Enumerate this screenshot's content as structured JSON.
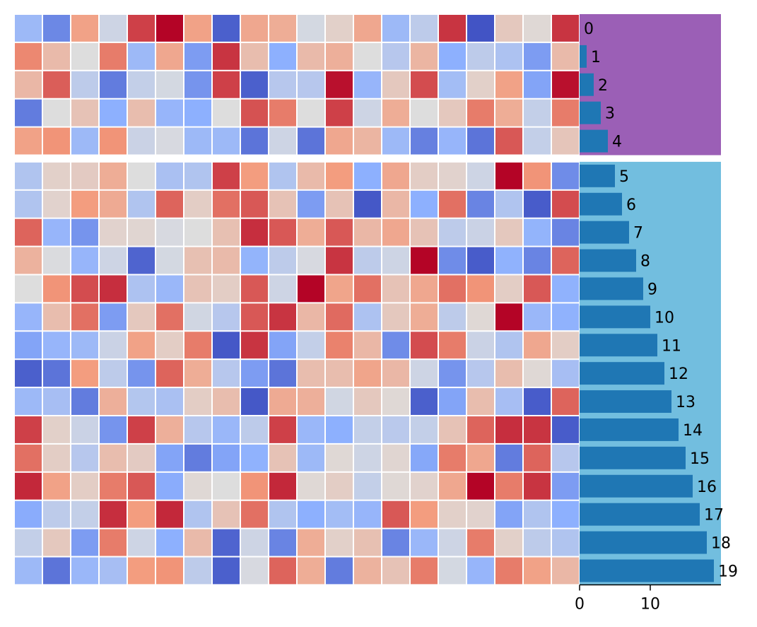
{
  "chart_data": [
    {
      "type": "heatmap",
      "rows": 20,
      "cols": 20,
      "color_scale": "coolwarm",
      "color_range": [
        0,
        1
      ],
      "row_groups": [
        [
          0,
          4
        ],
        [
          5,
          19
        ]
      ],
      "values": [
        [
          0.3,
          0.15,
          0.72,
          0.45,
          0.9,
          1.0,
          0.72,
          0.05,
          0.7,
          0.68,
          0.47,
          0.55,
          0.7,
          0.3,
          0.4,
          0.92,
          0.02,
          0.58,
          0.52,
          0.92
        ],
        [
          0.78,
          0.63,
          0.5,
          0.8,
          0.3,
          0.7,
          0.2,
          0.92,
          0.62,
          0.25,
          0.63,
          0.67,
          0.5,
          0.38,
          0.65,
          0.25,
          0.4,
          0.35,
          0.2,
          0.63
        ],
        [
          0.64,
          0.85,
          0.4,
          0.12,
          0.42,
          0.47,
          0.18,
          0.9,
          0.05,
          0.38,
          0.38,
          0.98,
          0.28,
          0.58,
          0.88,
          0.32,
          0.55,
          0.72,
          0.22,
          0.98
        ],
        [
          0.12,
          0.5,
          0.6,
          0.25,
          0.62,
          0.28,
          0.25,
          0.5,
          0.87,
          0.8,
          0.5,
          0.9,
          0.45,
          0.68,
          0.5,
          0.58,
          0.8,
          0.68,
          0.42,
          0.8
        ],
        [
          0.72,
          0.76,
          0.3,
          0.76,
          0.44,
          0.48,
          0.3,
          0.3,
          0.1,
          0.45,
          0.1,
          0.7,
          0.65,
          0.3,
          0.13,
          0.28,
          0.1,
          0.86,
          0.42,
          0.59
        ],
        [
          0.36,
          0.55,
          0.57,
          0.68,
          0.5,
          0.34,
          0.36,
          0.9,
          0.74,
          0.36,
          0.63,
          0.74,
          0.25,
          0.7,
          0.56,
          0.54,
          0.45,
          1.0,
          0.76,
          0.16
        ],
        [
          0.36,
          0.54,
          0.74,
          0.69,
          0.36,
          0.84,
          0.56,
          0.82,
          0.86,
          0.6,
          0.2,
          0.6,
          0.03,
          0.64,
          0.25,
          0.82,
          0.14,
          0.36,
          0.04,
          0.88
        ],
        [
          0.84,
          0.28,
          0.18,
          0.54,
          0.53,
          0.48,
          0.5,
          0.61,
          0.93,
          0.86,
          0.68,
          0.86,
          0.64,
          0.7,
          0.6,
          0.4,
          0.44,
          0.58,
          0.27,
          0.14
        ],
        [
          0.66,
          0.49,
          0.28,
          0.45,
          0.06,
          0.47,
          0.61,
          0.63,
          0.27,
          0.4,
          0.48,
          0.92,
          0.4,
          0.45,
          1.0,
          0.16,
          0.04,
          0.26,
          0.14,
          0.84
        ],
        [
          0.5,
          0.76,
          0.88,
          0.93,
          0.35,
          0.29,
          0.6,
          0.56,
          0.86,
          0.45,
          1.0,
          0.71,
          0.82,
          0.6,
          0.7,
          0.82,
          0.76,
          0.56,
          0.86,
          0.26
        ],
        [
          0.28,
          0.62,
          0.82,
          0.2,
          0.58,
          0.82,
          0.46,
          0.38,
          0.86,
          0.92,
          0.64,
          0.83,
          0.35,
          0.58,
          0.68,
          0.4,
          0.52,
          1.0,
          0.29,
          0.26
        ],
        [
          0.22,
          0.28,
          0.3,
          0.44,
          0.72,
          0.56,
          0.8,
          0.03,
          0.92,
          0.22,
          0.42,
          0.79,
          0.64,
          0.16,
          0.88,
          0.8,
          0.44,
          0.36,
          0.7,
          0.56
        ],
        [
          0.05,
          0.1,
          0.74,
          0.4,
          0.18,
          0.84,
          0.68,
          0.38,
          0.2,
          0.1,
          0.62,
          0.62,
          0.71,
          0.64,
          0.45,
          0.18,
          0.38,
          0.62,
          0.52,
          0.33
        ],
        [
          0.3,
          0.33,
          0.12,
          0.67,
          0.37,
          0.34,
          0.56,
          0.62,
          0.03,
          0.69,
          0.67,
          0.46,
          0.58,
          0.52,
          0.05,
          0.22,
          0.62,
          0.33,
          0.04,
          0.84
        ],
        [
          0.9,
          0.55,
          0.44,
          0.18,
          0.9,
          0.67,
          0.38,
          0.29,
          0.4,
          0.9,
          0.29,
          0.25,
          0.42,
          0.39,
          0.42,
          0.6,
          0.84,
          0.93,
          0.92,
          0.04
        ],
        [
          0.82,
          0.56,
          0.38,
          0.62,
          0.57,
          0.22,
          0.12,
          0.22,
          0.26,
          0.6,
          0.3,
          0.52,
          0.45,
          0.53,
          0.23,
          0.8,
          0.7,
          0.12,
          0.84,
          0.38
        ],
        [
          0.94,
          0.72,
          0.56,
          0.8,
          0.86,
          0.24,
          0.52,
          0.5,
          0.76,
          0.94,
          0.52,
          0.56,
          0.42,
          0.52,
          0.54,
          0.7,
          1.0,
          0.8,
          0.92,
          0.2
        ],
        [
          0.24,
          0.4,
          0.42,
          0.93,
          0.74,
          0.94,
          0.36,
          0.6,
          0.82,
          0.36,
          0.25,
          0.32,
          0.28,
          0.86,
          0.74,
          0.55,
          0.54,
          0.22,
          0.36,
          0.25
        ],
        [
          0.42,
          0.58,
          0.2,
          0.8,
          0.45,
          0.25,
          0.63,
          0.06,
          0.45,
          0.14,
          0.68,
          0.55,
          0.61,
          0.14,
          0.29,
          0.45,
          0.8,
          0.55,
          0.4,
          0.36
        ],
        [
          0.3,
          0.1,
          0.29,
          0.33,
          0.74,
          0.76,
          0.4,
          0.05,
          0.48,
          0.84,
          0.68,
          0.12,
          0.66,
          0.6,
          0.8,
          0.47,
          0.28,
          0.8,
          0.72,
          0.64
        ]
      ]
    },
    {
      "type": "bar",
      "orientation": "horizontal",
      "categories": [
        "0",
        "1",
        "2",
        "3",
        "4",
        "5",
        "6",
        "7",
        "8",
        "9",
        "10",
        "11",
        "12",
        "13",
        "14",
        "15",
        "16",
        "17",
        "18",
        "19"
      ],
      "values": [
        0,
        1,
        2,
        3,
        4,
        5,
        6,
        7,
        8,
        9,
        10,
        11,
        12,
        13,
        14,
        15,
        16,
        17,
        18,
        19
      ],
      "data_labels": [
        "0",
        "1",
        "2",
        "3",
        "4",
        "5",
        "6",
        "7",
        "8",
        "9",
        "10",
        "11",
        "12",
        "13",
        "14",
        "15",
        "16",
        "17",
        "18",
        "19"
      ],
      "xlim": [
        0,
        20
      ],
      "xticks": [
        "0",
        "10"
      ],
      "bar_color": "#1f77b4",
      "group_backgrounds": [
        "#9b5fb6",
        "#72bedf"
      ]
    }
  ]
}
